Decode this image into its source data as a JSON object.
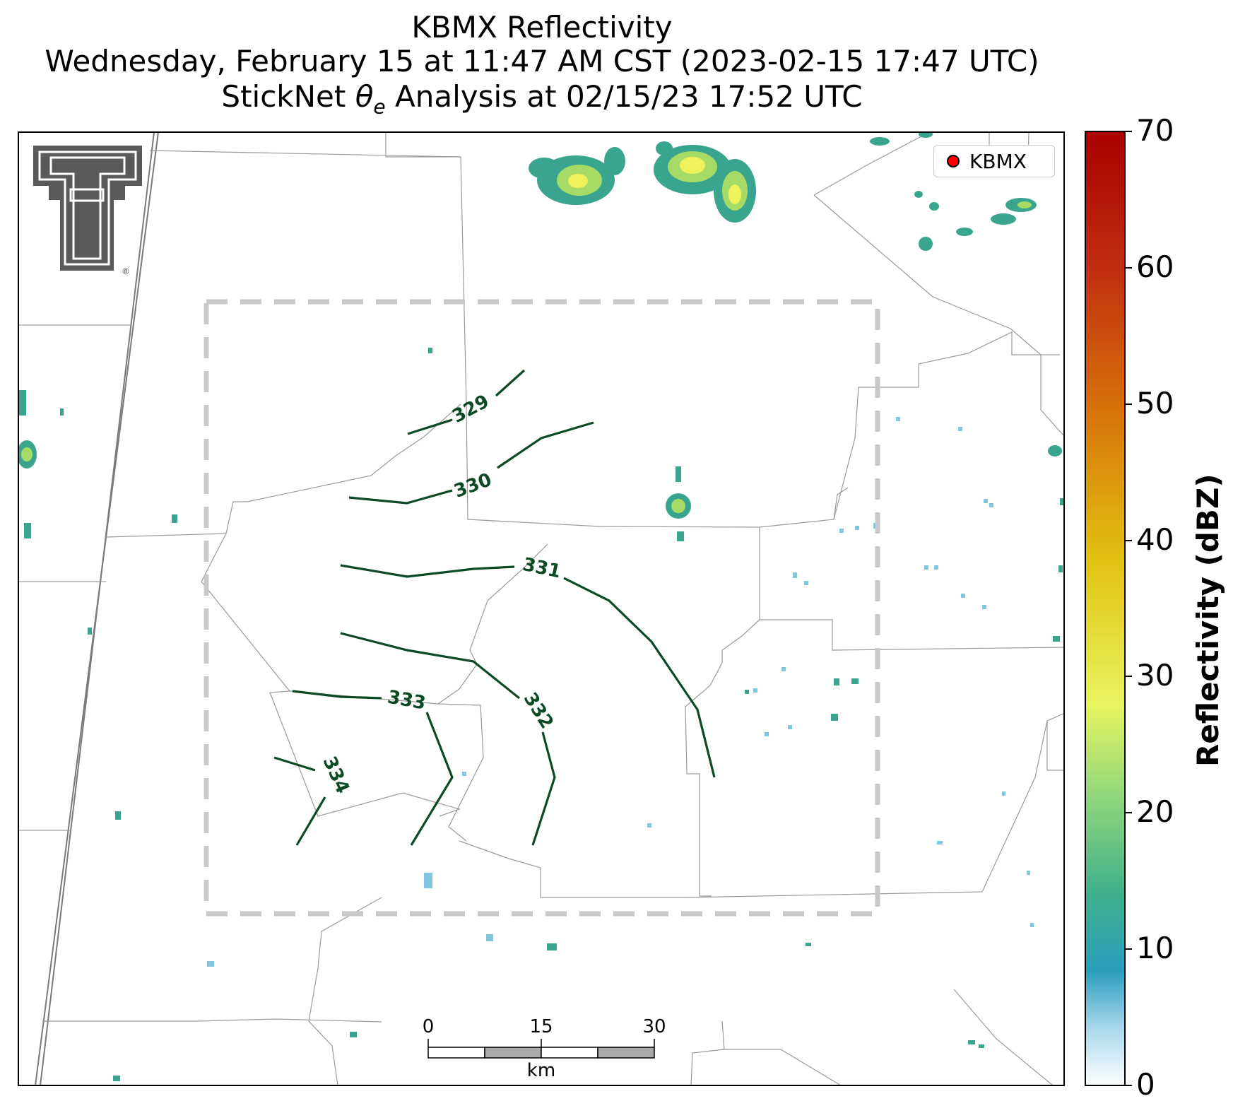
{
  "title": {
    "line1": "KBMX Reflectivity",
    "line2": "Wednesday, February 15 at 11:47 AM CST (2023-02-15 17:47 UTC)",
    "line3_prefix": "StickNet ",
    "line3_symbol": "θ",
    "line3_subscript": "e",
    "line3_suffix": " Analysis at 02/15/23 17:52 UTC"
  },
  "legend": {
    "label": "KBMX",
    "marker_color": "#ff0000"
  },
  "colorbar": {
    "title": "Reflectivity (dBZ)",
    "ticks": [
      "0",
      "10",
      "20",
      "30",
      "40",
      "50",
      "60",
      "70"
    ],
    "min": 0,
    "max": 70
  },
  "scale_bar": {
    "labels": [
      "0",
      "15",
      "30"
    ],
    "unit": "km"
  },
  "contours": {
    "color": "#0b4a24",
    "labels": [
      "329",
      "330",
      "331",
      "332",
      "333",
      "334"
    ]
  },
  "analysis_box": {
    "style": "dashed",
    "color": "#c8c8c8"
  },
  "logo": {
    "name": "Texas Tech double-T logo",
    "mark": "®"
  }
}
